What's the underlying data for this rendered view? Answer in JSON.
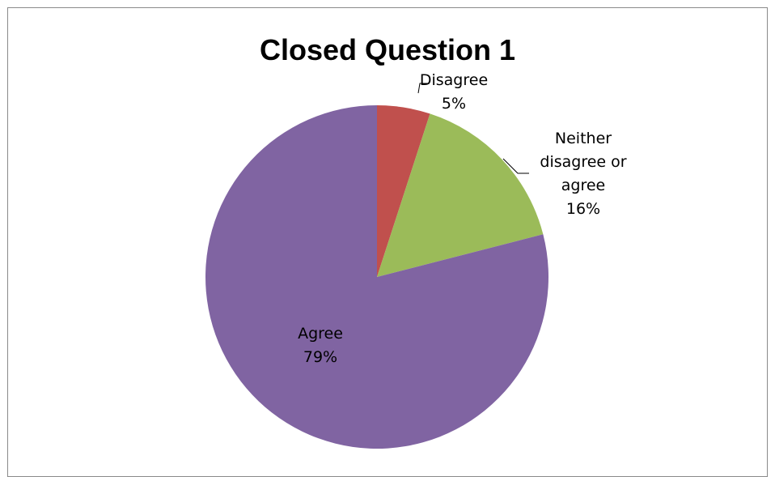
{
  "chart_data": {
    "type": "pie",
    "title": "Closed Question 1",
    "categories": [
      "Disagree",
      "Neither disagree or agree",
      "Agree"
    ],
    "values": [
      5,
      16,
      79
    ],
    "unit": "%",
    "colors": [
      "#C0504D",
      "#9BBB59",
      "#8064A2"
    ],
    "labels": [
      {
        "lines": [
          "Disagree",
          "5%"
        ]
      },
      {
        "lines": [
          "Neither",
          "disagree or",
          "agree",
          "16%"
        ]
      },
      {
        "lines": [
          "Agree",
          "79%"
        ]
      }
    ],
    "start_angle": "12 o'clock",
    "direction": "clockwise",
    "legend": "none"
  }
}
